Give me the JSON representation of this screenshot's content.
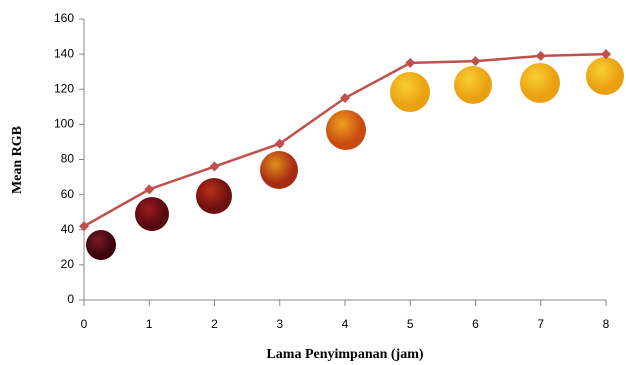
{
  "chart_data": {
    "type": "line",
    "x_label": "Lama Penyimpanan (jam)",
    "y_label": "Mean RGB",
    "x": [
      0,
      1,
      2,
      3,
      4,
      5,
      6,
      7,
      8
    ],
    "series": [
      {
        "color": "#c0504d",
        "values": [
          42,
          63,
          76,
          89,
          115,
          135,
          136,
          139,
          140
        ]
      }
    ],
    "xlim": [
      0,
      8
    ],
    "xticks": [
      0,
      1,
      2,
      3,
      4,
      5,
      6,
      7,
      8
    ],
    "ylim": [
      0,
      160
    ],
    "yticks": [
      0,
      20,
      40,
      60,
      80,
      100,
      120,
      140,
      160
    ],
    "grid": false
  }
}
